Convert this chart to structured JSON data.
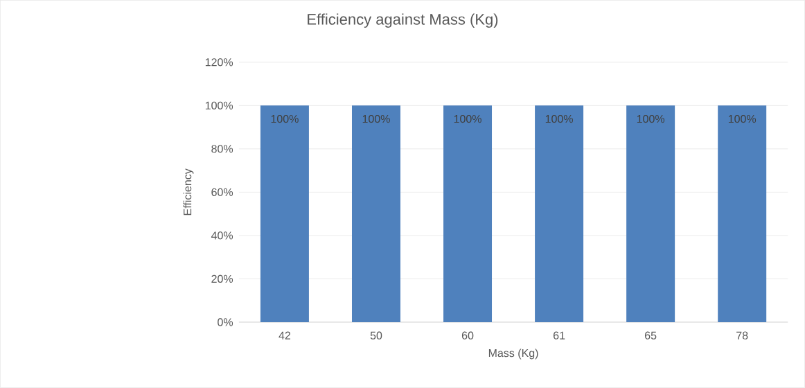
{
  "chart_data": {
    "type": "bar",
    "title": "Efficiency against Mass (Kg)",
    "xlabel": "Mass (Kg)",
    "ylabel": "Efficiency",
    "categories": [
      "42",
      "50",
      "60",
      "61",
      "65",
      "78"
    ],
    "values": [
      100,
      100,
      100,
      100,
      100,
      100
    ],
    "value_labels": [
      "100%",
      "100%",
      "100%",
      "100%",
      "100%",
      "100%"
    ],
    "color": "#4f81bd",
    "ylim": [
      0,
      120
    ],
    "yticks": [
      {
        "value": 0,
        "label": "0%"
      },
      {
        "value": 20,
        "label": "20%"
      },
      {
        "value": 40,
        "label": "40%"
      },
      {
        "value": 60,
        "label": "60%"
      },
      {
        "value": 80,
        "label": "80%"
      },
      {
        "value": 100,
        "label": "100%"
      },
      {
        "value": 120,
        "label": "120%"
      }
    ],
    "grid": "y"
  }
}
